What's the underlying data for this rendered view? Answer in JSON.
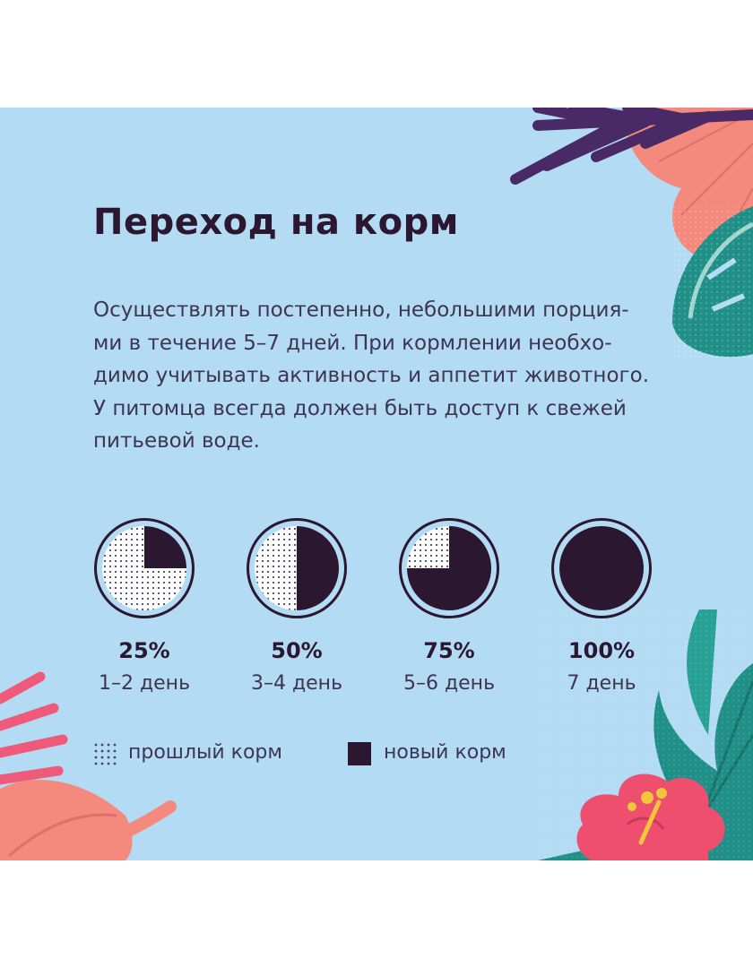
{
  "title": "Переход на корм",
  "description_lines": [
    "Осуществлять постепенно, небольшими порция-",
    "ми в течение 5–7 дней. При кормлении необхо-",
    "димо учитывать активность и аппетит животного.",
    "У питомца всегда должен быть доступ к свежей",
    "питьевой воде."
  ],
  "stages": [
    {
      "percent_label": "25%",
      "days_label": "1–2 день",
      "new_fraction": 0.25
    },
    {
      "percent_label": "50%",
      "days_label": "3–4 день",
      "new_fraction": 0.5
    },
    {
      "percent_label": "75%",
      "days_label": "5–6 день",
      "new_fraction": 0.75
    },
    {
      "percent_label": "100%",
      "days_label": "7 день",
      "new_fraction": 1.0
    }
  ],
  "legend": {
    "old_food": "прошлый корм",
    "new_food": "новый корм"
  },
  "colors": {
    "background": "#b3dcf4",
    "dark": "#2b1830",
    "text": "#3e3552",
    "dots": "#4a4560",
    "leaf_purple": "#4a2a66",
    "leaf_coral": "#f48a7e",
    "leaf_teal": "#1f8f87",
    "leaf_pink": "#ef5a7a",
    "flower": "#ee4f6e",
    "stamen": "#f2c63c"
  }
}
